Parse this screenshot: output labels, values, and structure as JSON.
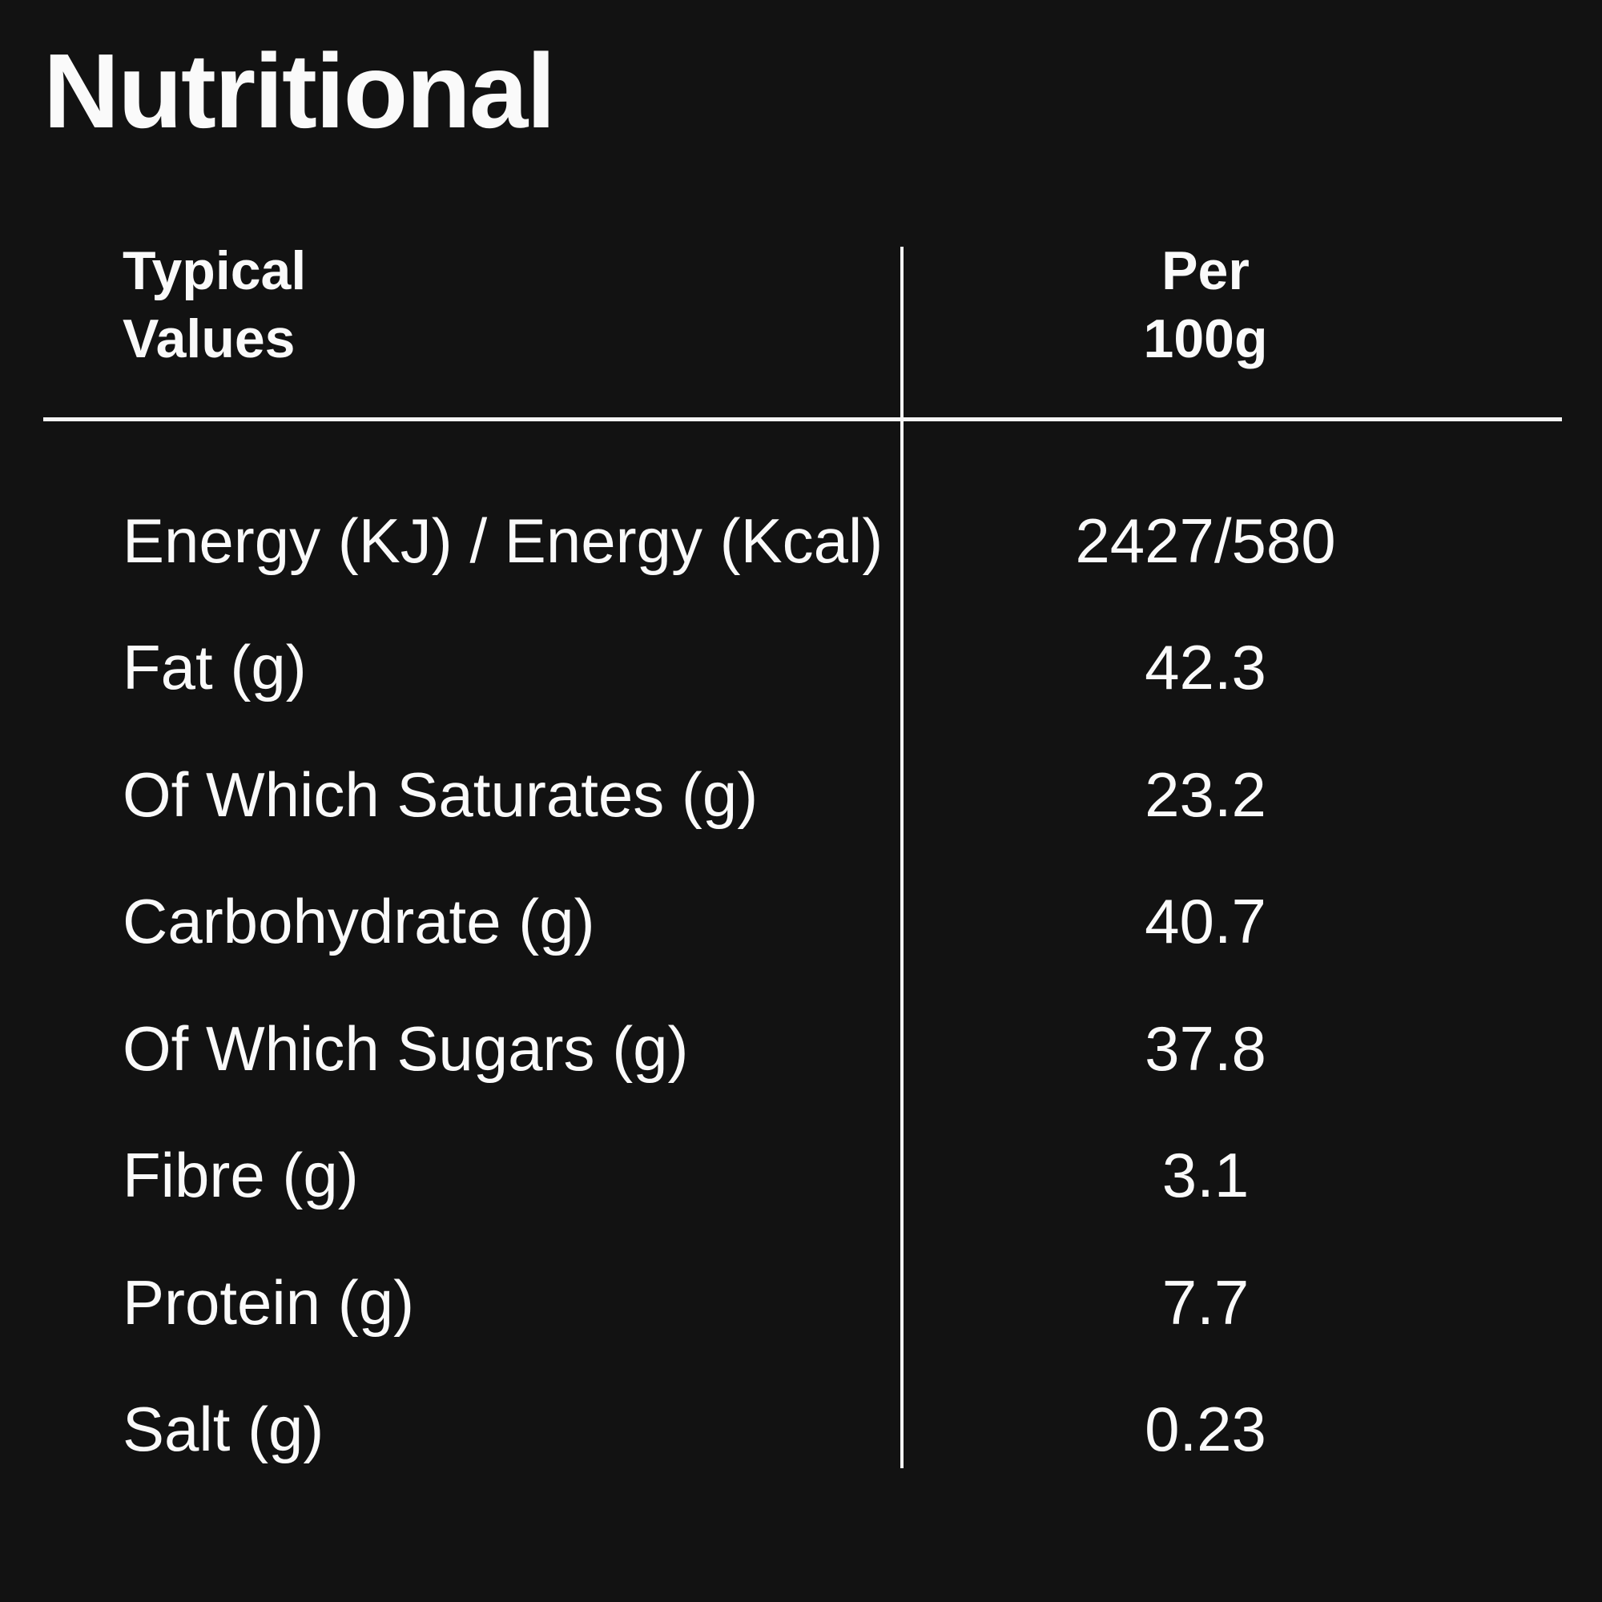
{
  "page": {
    "title": "Nutritional"
  },
  "table": {
    "header": {
      "typical_values": "Typical\nValues",
      "per_unit": "Per\n100g"
    },
    "rows": [
      {
        "label": "Energy (KJ) / Energy (Kcal)",
        "value": "2427/580"
      },
      {
        "label": "Fat (g)",
        "value": "42.3"
      },
      {
        "label": "Of Which Saturates (g)",
        "value": "23.2"
      },
      {
        "label": "Carbohydrate (g)",
        "value": "40.7"
      },
      {
        "label": "Of Which Sugars (g)",
        "value": "37.8"
      },
      {
        "label": "Fibre (g)",
        "value": "3.1"
      },
      {
        "label": "Protein (g)",
        "value": "7.7"
      },
      {
        "label": "Salt (g)",
        "value": "0.23"
      }
    ]
  },
  "colors": {
    "background": "#121212",
    "text": "#fafafa",
    "line": "#f5f5f5"
  }
}
